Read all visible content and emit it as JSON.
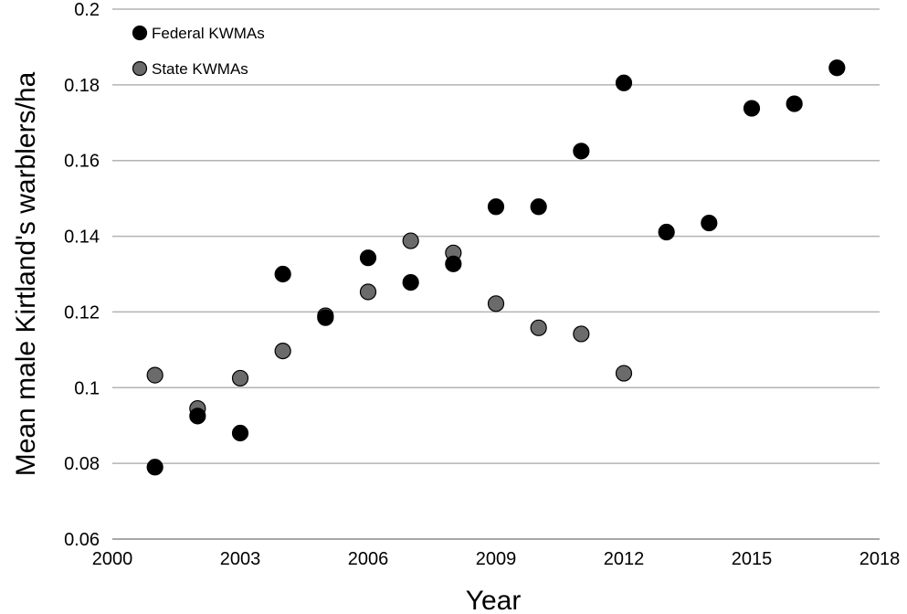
{
  "chart_data": {
    "type": "scatter",
    "title": "",
    "xlabel": "Year",
    "ylabel": "Mean male Kirtland's warblers/ha",
    "xlim": [
      2000,
      2018
    ],
    "ylim": [
      0.06,
      0.2
    ],
    "x_ticks": [
      2000,
      2003,
      2006,
      2009,
      2012,
      2015,
      2018
    ],
    "y_ticks": [
      0.06,
      0.08,
      0.1,
      0.12,
      0.14,
      0.16,
      0.18,
      0.2
    ],
    "y_tick_labels": [
      "0.06",
      "0.08",
      "0.1",
      "0.12",
      "0.14",
      "0.16",
      "0.18",
      "0.2"
    ],
    "grid": "horizontal",
    "legend_position": "top-left",
    "series": [
      {
        "name": "Federal KWMAs",
        "color": "#000000",
        "x": [
          2001,
          2002,
          2003,
          2004,
          2005,
          2006,
          2007,
          2008,
          2009,
          2010,
          2011,
          2012,
          2013,
          2014,
          2015,
          2016,
          2017
        ],
        "y": [
          0.079,
          0.0925,
          0.088,
          0.13,
          0.1185,
          0.1343,
          0.1278,
          0.1327,
          0.1478,
          0.1478,
          0.1625,
          0.1805,
          0.1411,
          0.1435,
          0.1738,
          0.175,
          0.1845
        ]
      },
      {
        "name": "State KWMAs",
        "color": "#6b6b6b",
        "x": [
          2001,
          2002,
          2003,
          2004,
          2005,
          2006,
          2007,
          2008,
          2009,
          2010,
          2011,
          2012
        ],
        "y": [
          0.1033,
          0.0945,
          0.1025,
          0.1097,
          0.119,
          0.1253,
          0.1388,
          0.1356,
          0.1222,
          0.1158,
          0.1142,
          0.1038
        ]
      }
    ]
  }
}
